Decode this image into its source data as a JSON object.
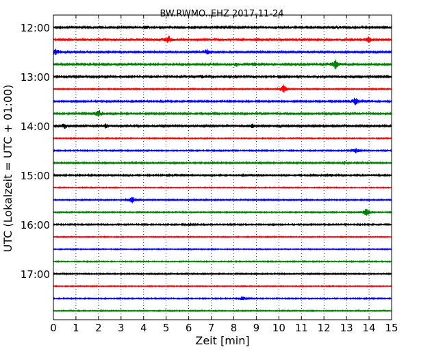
{
  "chart_data": {
    "type": "line",
    "title": "BW.RWMO..EHZ 2017-11-24",
    "xlabel": "Zeit  [min]",
    "ylabel": "UTC (Lokalzeit = UTC + 01:00)",
    "xlim": [
      0,
      15
    ],
    "x_ticks": [
      "0",
      "1",
      "2",
      "3",
      "4",
      "5",
      "6",
      "7",
      "8",
      "9",
      "10",
      "11",
      "12",
      "13",
      "14",
      "15"
    ],
    "y_tick_labels": [
      "12:00",
      "13:00",
      "14:00",
      "15:00",
      "16:00",
      "17:00"
    ],
    "grid": "vertical dotted",
    "trace_colors": [
      "#000000",
      "#ff0000",
      "#0000ff",
      "#008000"
    ],
    "traces": [
      {
        "start": "12:00",
        "color": "#000000",
        "noise": 1.6,
        "events": [
          {
            "x": 4.1,
            "amp": 2
          },
          {
            "x": 12.6,
            "amp": 2
          }
        ]
      },
      {
        "start": "12:15",
        "color": "#ff0000",
        "noise": 1.8,
        "events": [
          {
            "x": 5.1,
            "amp": 6
          },
          {
            "x": 14.0,
            "amp": 5
          }
        ]
      },
      {
        "start": "12:30",
        "color": "#0000ff",
        "noise": 2.2,
        "events": [
          {
            "x": 0.1,
            "amp": 4
          },
          {
            "x": 6.8,
            "amp": 3
          }
        ]
      },
      {
        "start": "12:45",
        "color": "#008000",
        "noise": 1.6,
        "events": [
          {
            "x": 8.1,
            "amp": 3
          },
          {
            "x": 8.9,
            "amp": 3
          },
          {
            "x": 12.5,
            "amp": 7
          }
        ]
      },
      {
        "start": "13:00",
        "color": "#000000",
        "noise": 1.4,
        "events": [
          {
            "x": 6.6,
            "amp": 2
          }
        ]
      },
      {
        "start": "13:15",
        "color": "#ff0000",
        "noise": 1.0,
        "events": [
          {
            "x": 10.2,
            "amp": 7
          }
        ]
      },
      {
        "start": "13:30",
        "color": "#0000ff",
        "noise": 1.3,
        "events": [
          {
            "x": 13.4,
            "amp": 7
          }
        ]
      },
      {
        "start": "13:45",
        "color": "#008000",
        "noise": 1.4,
        "events": [
          {
            "x": 2.0,
            "amp": 7
          }
        ]
      },
      {
        "start": "14:00",
        "color": "#000000",
        "noise": 1.9,
        "events": [
          {
            "x": 0.5,
            "amp": 3
          },
          {
            "x": 2.3,
            "amp": 3
          },
          {
            "x": 8.8,
            "amp": 3
          }
        ]
      },
      {
        "start": "14:15",
        "color": "#ff0000",
        "noise": 0.9,
        "events": []
      },
      {
        "start": "14:30",
        "color": "#0000ff",
        "noise": 1.0,
        "events": [
          {
            "x": 13.4,
            "amp": 5
          }
        ]
      },
      {
        "start": "14:45",
        "color": "#008000",
        "noise": 1.2,
        "events": [
          {
            "x": 12.9,
            "amp": 2
          }
        ]
      },
      {
        "start": "15:00",
        "color": "#000000",
        "noise": 1.2,
        "events": [
          {
            "x": 12.3,
            "amp": 2
          }
        ]
      },
      {
        "start": "15:15",
        "color": "#ff0000",
        "noise": 0.8,
        "events": []
      },
      {
        "start": "15:30",
        "color": "#0000ff",
        "noise": 1.0,
        "events": [
          {
            "x": 3.5,
            "amp": 5
          }
        ]
      },
      {
        "start": "15:45",
        "color": "#008000",
        "noise": 1.0,
        "events": [
          {
            "x": 13.9,
            "amp": 7
          }
        ]
      },
      {
        "start": "16:00",
        "color": "#000000",
        "noise": 1.1,
        "events": [
          {
            "x": 6.0,
            "amp": 2
          }
        ]
      },
      {
        "start": "16:15",
        "color": "#ff0000",
        "noise": 0.8,
        "events": []
      },
      {
        "start": "16:30",
        "color": "#0000ff",
        "noise": 0.8,
        "events": []
      },
      {
        "start": "16:45",
        "color": "#008000",
        "noise": 0.9,
        "events": []
      },
      {
        "start": "17:00",
        "color": "#000000",
        "noise": 1.0,
        "events": []
      },
      {
        "start": "17:15",
        "color": "#ff0000",
        "noise": 0.8,
        "events": []
      },
      {
        "start": "17:30",
        "color": "#0000ff",
        "noise": 0.9,
        "events": [
          {
            "x": 8.4,
            "amp": 4
          }
        ]
      },
      {
        "start": "17:45",
        "color": "#008000",
        "noise": 0.9,
        "events": []
      }
    ]
  }
}
